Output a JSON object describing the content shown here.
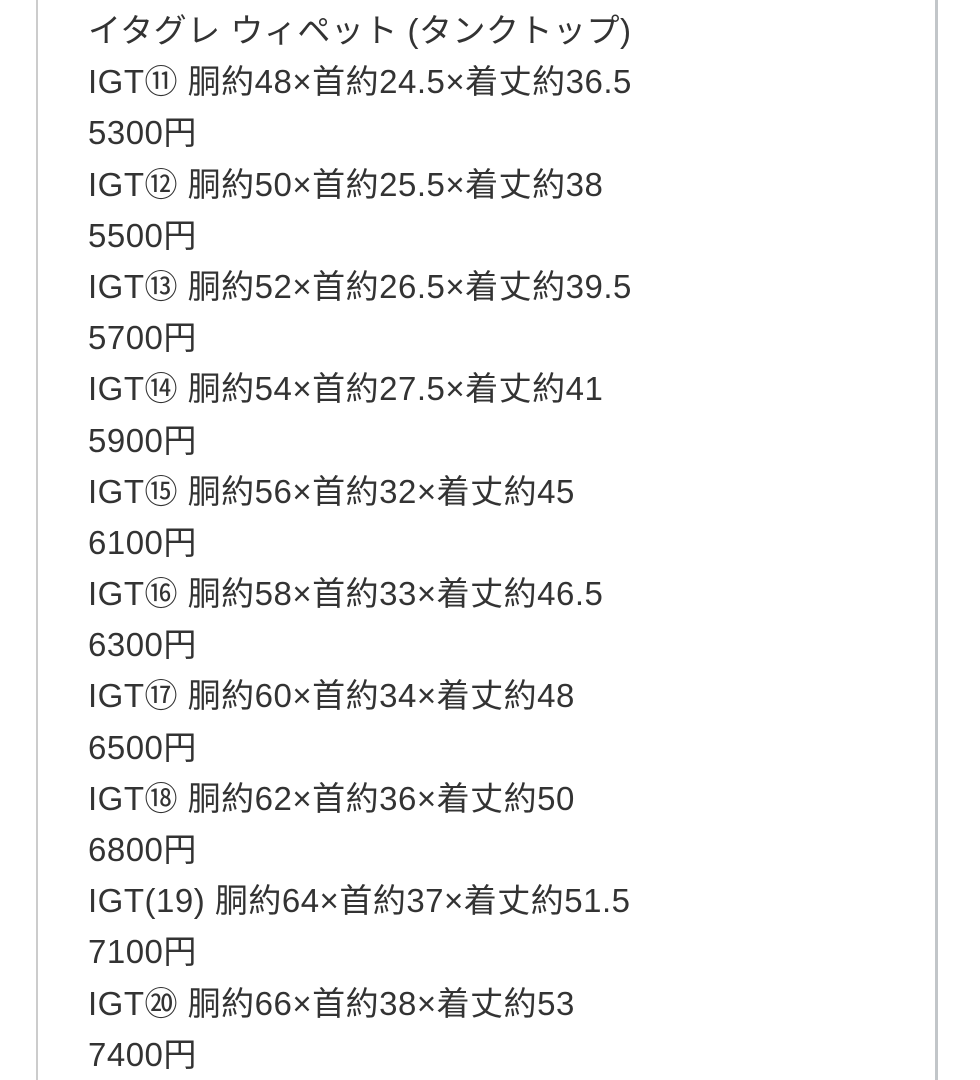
{
  "page": {
    "background": "#ffffff",
    "border_left_color": "#cccccc",
    "border_right_color": "#c2c6c9",
    "text_color": "#333333"
  },
  "listing": {
    "title": "イタグレ ウィペット (タンクトップ)",
    "items": [
      {
        "size_line": "IGT⑪ 胴約48×首約24.5×着丈約36.5",
        "price_line": "5300円"
      },
      {
        "size_line": "IGT⑫ 胴約50×首約25.5×着丈約38",
        "price_line": "5500円"
      },
      {
        "size_line": "IGT⑬ 胴約52×首約26.5×着丈約39.5",
        "price_line": "5700円"
      },
      {
        "size_line": "IGT⑭ 胴約54×首約27.5×着丈約41",
        "price_line": "5900円"
      },
      {
        "size_line": "IGT⑮ 胴約56×首約32×着丈約45",
        "price_line": "6100円"
      },
      {
        "size_line": "IGT⑯ 胴約58×首約33×着丈約46.5",
        "price_line": "6300円"
      },
      {
        "size_line": "IGT⑰ 胴約60×首約34×着丈約48",
        "price_line": "6500円"
      },
      {
        "size_line": "IGT⑱ 胴約62×首約36×着丈約50",
        "price_line": "6800円"
      },
      {
        "size_line": "IGT(19) 胴約64×首約37×着丈約51.5",
        "price_line": "7100円"
      },
      {
        "size_line": "IGT⑳ 胴約66×首約38×着丈約53",
        "price_line": "7400円"
      }
    ]
  }
}
